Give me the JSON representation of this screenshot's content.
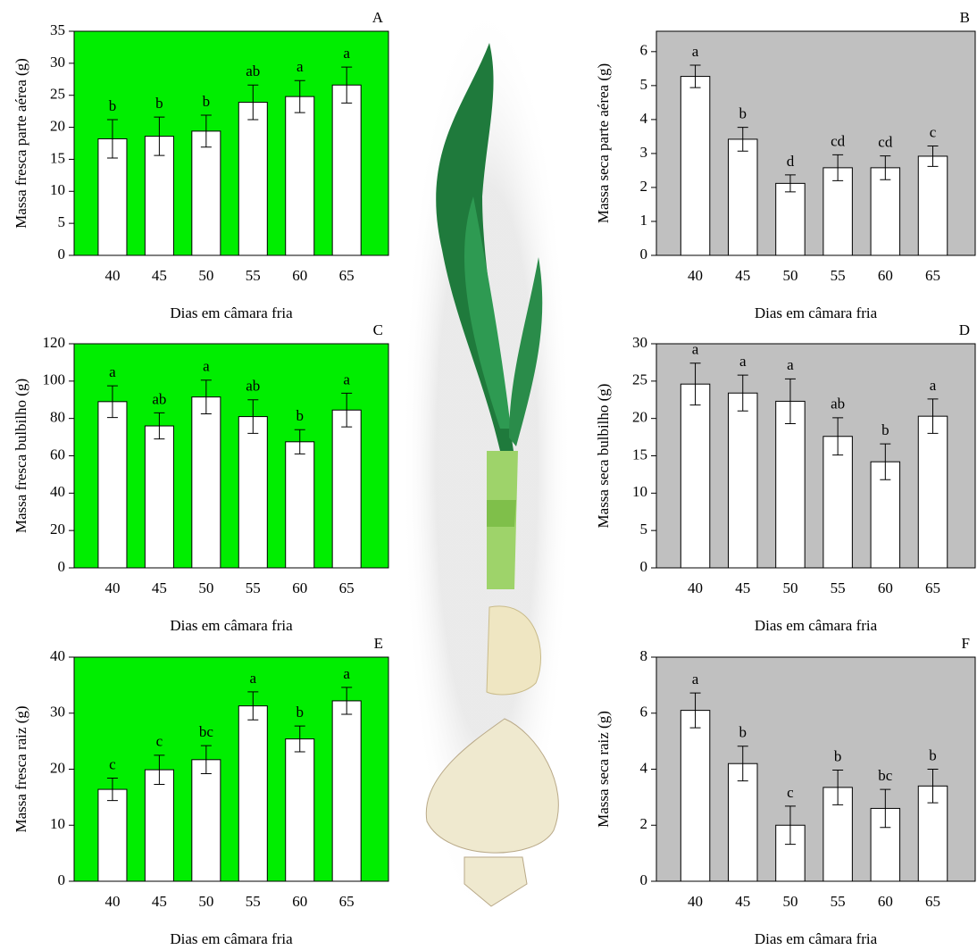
{
  "chart_data": [
    {
      "type": "bar",
      "panel": "A",
      "ylabel": "Massa fresca parte aérea (g)",
      "xlabel": "Dias em câmara fria",
      "categories": [
        "40",
        "45",
        "50",
        "55",
        "60",
        "65"
      ],
      "values": [
        18.2,
        18.6,
        19.4,
        23.9,
        24.8,
        26.6
      ],
      "errors": [
        3,
        3,
        2.5,
        2.7,
        2.5,
        2.8
      ],
      "annotations": [
        "b",
        "b",
        "b",
        "ab",
        "a",
        "a"
      ],
      "ylim": [
        0,
        35
      ],
      "yticks": [
        0,
        5,
        10,
        15,
        20,
        25,
        30,
        35
      ],
      "background": "#00ee00",
      "color": "#ffffff"
    },
    {
      "type": "bar",
      "panel": "B",
      "ylabel": "Massa seca parte aérea (g)",
      "xlabel": "Dias em câmara fria",
      "categories": [
        "40",
        "45",
        "50",
        "55",
        "60",
        "65"
      ],
      "values": [
        5.27,
        3.42,
        2.12,
        2.58,
        2.58,
        2.92
      ],
      "errors": [
        0.33,
        0.35,
        0.25,
        0.38,
        0.35,
        0.3
      ],
      "annotations": [
        "a",
        "b",
        "d",
        "cd",
        "cd",
        "c"
      ],
      "ylim": [
        0,
        6.6
      ],
      "yticks": [
        0,
        1,
        2,
        3,
        4,
        5,
        6
      ],
      "background": "#c0c0c0",
      "color": "#ffffff"
    },
    {
      "type": "bar",
      "panel": "C",
      "ylabel": "Massa fresca bulbilho (g)",
      "xlabel": "Dias em câmara fria",
      "categories": [
        "40",
        "45",
        "50",
        "55",
        "60",
        "65"
      ],
      "values": [
        89,
        76,
        91.5,
        81,
        67.5,
        84.5
      ],
      "errors": [
        8.5,
        7,
        9,
        9,
        6.5,
        9
      ],
      "annotations": [
        "a",
        "ab",
        "a",
        "ab",
        "b",
        "a"
      ],
      "ylim": [
        0,
        120
      ],
      "yticks": [
        0,
        20,
        40,
        60,
        80,
        100,
        120
      ],
      "background": "#00ee00",
      "color": "#ffffff"
    },
    {
      "type": "bar",
      "panel": "D",
      "ylabel": "Massa seca bulbilho (g)",
      "xlabel": "Dias em câmara fria",
      "categories": [
        "40",
        "45",
        "50",
        "55",
        "60",
        "65"
      ],
      "values": [
        24.6,
        23.4,
        22.3,
        17.6,
        14.2,
        20.3
      ],
      "errors": [
        2.8,
        2.4,
        3,
        2.5,
        2.4,
        2.3
      ],
      "annotations": [
        "a",
        "a",
        "a",
        "ab",
        "b",
        "a"
      ],
      "ylim": [
        0,
        30
      ],
      "yticks": [
        0,
        5,
        10,
        15,
        20,
        25,
        30
      ],
      "background": "#c0c0c0",
      "color": "#ffffff"
    },
    {
      "type": "bar",
      "panel": "E",
      "ylabel": "Massa fresca raiz (g)",
      "xlabel": "Dias em câmara fria",
      "categories": [
        "40",
        "45",
        "50",
        "55",
        "60",
        "65"
      ],
      "values": [
        16.4,
        19.9,
        21.7,
        31.3,
        25.4,
        32.2
      ],
      "errors": [
        2,
        2.6,
        2.5,
        2.5,
        2.3,
        2.4
      ],
      "annotations": [
        "c",
        "c",
        "bc",
        "a",
        "b",
        "a"
      ],
      "ylim": [
        0,
        40
      ],
      "yticks": [
        0,
        10,
        20,
        30,
        40
      ],
      "background": "#00ee00",
      "color": "#ffffff"
    },
    {
      "type": "bar",
      "panel": "F",
      "ylabel": "Massa seca raiz (g)",
      "xlabel": "Dias em câmara fria",
      "categories": [
        "40",
        "45",
        "50",
        "55",
        "60",
        "65"
      ],
      "values": [
        6.1,
        4.2,
        2.0,
        3.35,
        2.6,
        3.4
      ],
      "errors": [
        0.62,
        0.62,
        0.68,
        0.62,
        0.68,
        0.6
      ],
      "annotations": [
        "a",
        "b",
        "c",
        "b",
        "bc",
        "b"
      ],
      "ylim": [
        0,
        8
      ],
      "yticks": [
        0,
        2,
        4,
        6,
        8
      ],
      "background": "#c0c0c0",
      "color": "#ffffff"
    }
  ]
}
